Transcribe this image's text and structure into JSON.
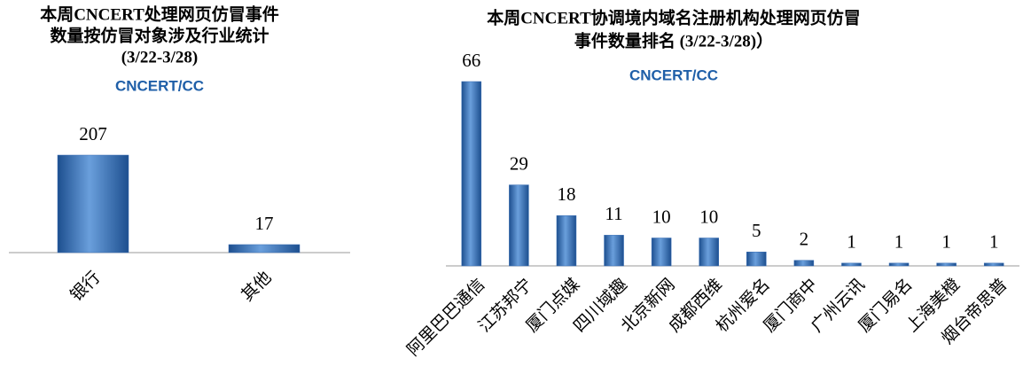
{
  "chart_data": [
    {
      "type": "bar",
      "title": [
        "本周CNCERT处理网页仿冒事件",
        "数量按仿冒对象涉及行业统计",
        "(3/22-3/28)"
      ],
      "logo": "CNCERT/CC",
      "categories": [
        "银行",
        "其他"
      ],
      "values": [
        207,
        17
      ],
      "color": "#3a6fb5"
    },
    {
      "type": "bar",
      "title": [
        "本周CNCERT协调境内域名注册机构处理网页仿冒",
        "事件数量排名 (3/22-3/28)）"
      ],
      "logo": "CNCERT/CC",
      "categories": [
        "阿里巴巴通信",
        "江苏邦宁",
        "厦门点媒",
        "四川域趣",
        "北京新网",
        "成都西维",
        "杭州爱名",
        "厦门商中",
        "广州云讯",
        "厦门易名",
        "上海美橙",
        "烟台帝思普"
      ],
      "values": [
        66,
        29,
        18,
        11,
        10,
        10,
        5,
        2,
        1,
        1,
        1,
        1
      ],
      "color": "#3a6fb5"
    }
  ]
}
